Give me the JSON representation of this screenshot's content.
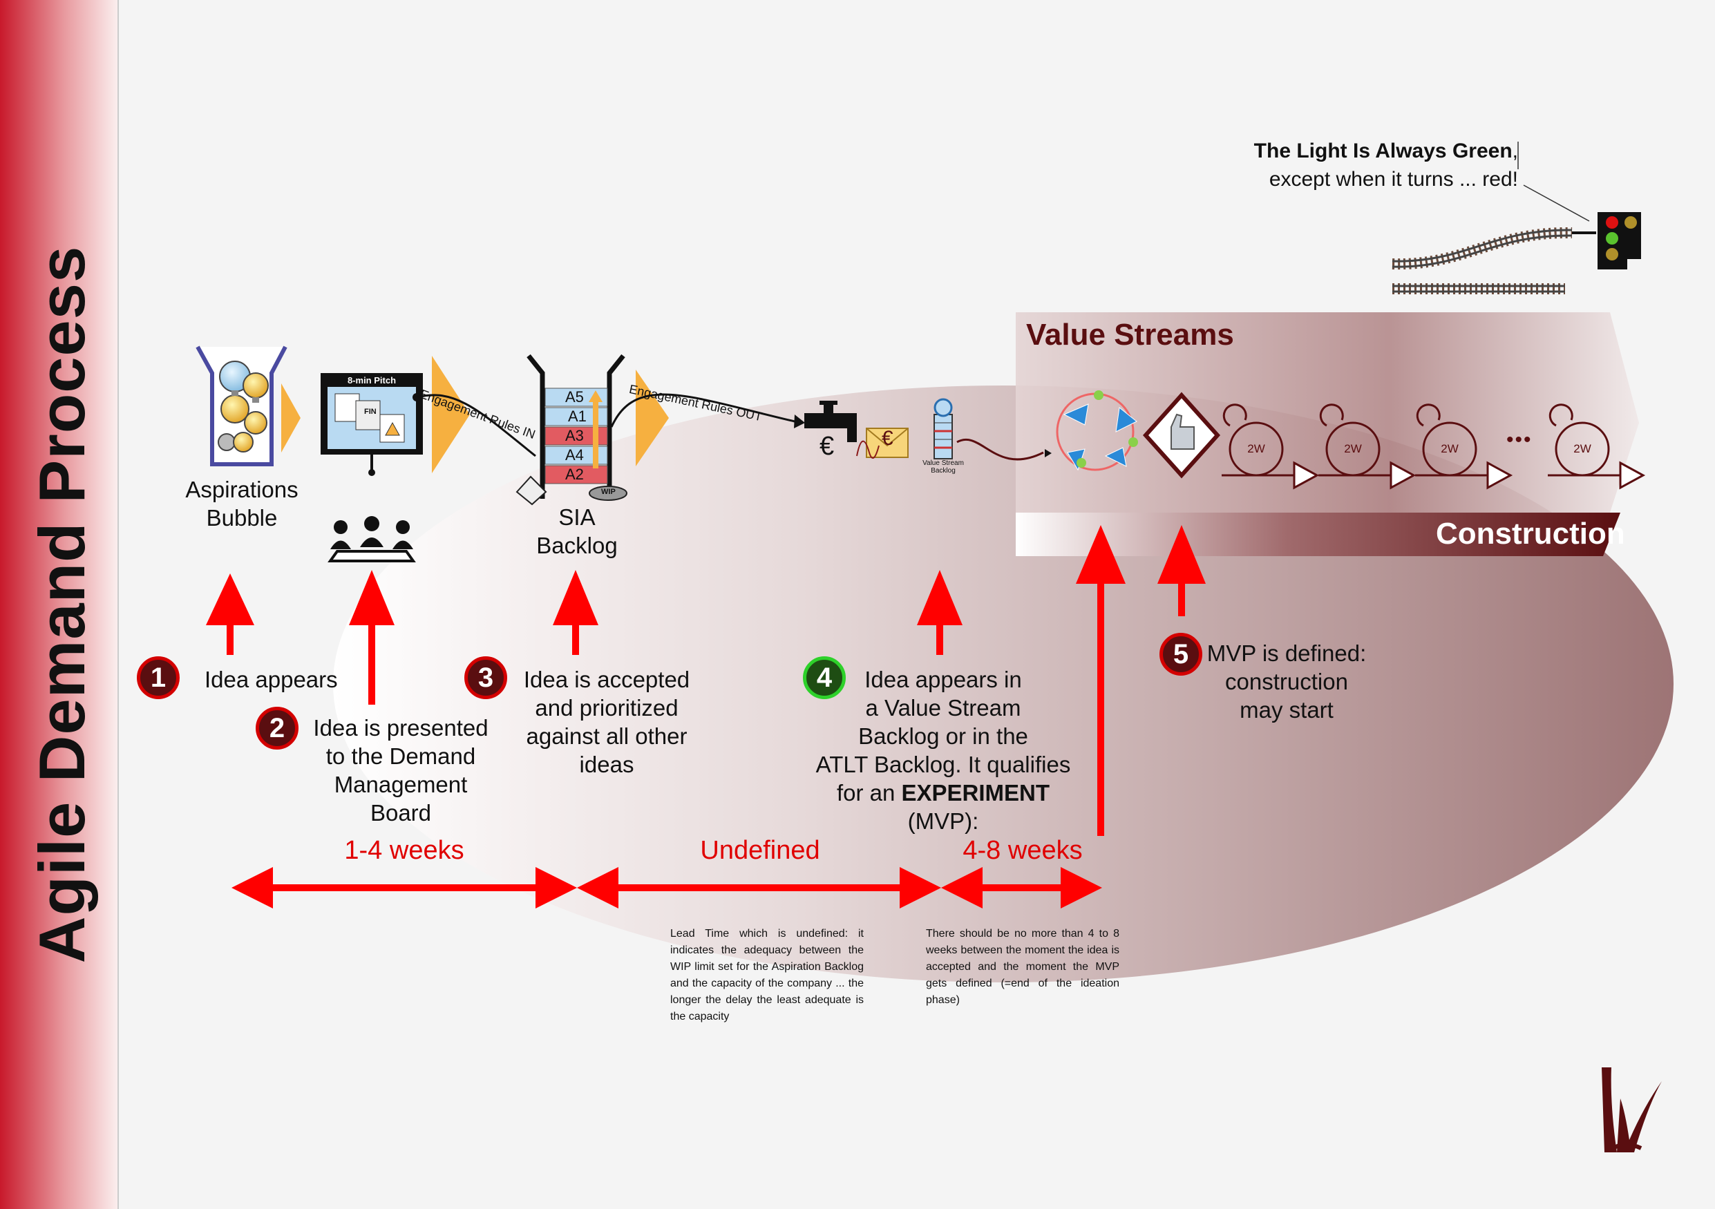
{
  "page_title": "Agile Demand Process",
  "stages": {
    "aspirations": "Aspirations\nBubble",
    "pitch_title": "8-min Pitch",
    "pitch_fin": "FIN",
    "sia_backlog": "SIA\nBacklog",
    "backlog_items": [
      "A5",
      "A1",
      "A3",
      "A4",
      "A2"
    ],
    "wip": "WIP",
    "vs_backlog": "Value Stream\nBacklog",
    "euro": "€",
    "rules_in": "Engagement Rules IN",
    "rules_out": "Engagement Rules OUT"
  },
  "value_streams": {
    "title": "Value Streams",
    "construction": "Construction",
    "sprint_label": "2W",
    "ellipsis": "•••"
  },
  "signal": {
    "line1_bold": "The Light Is Always Green",
    "line1_rest": ",",
    "line2": "except when it turns ... red!"
  },
  "steps": [
    {
      "num": "1",
      "text": "Idea appears"
    },
    {
      "num": "2",
      "text": "Idea is presented\nto the Demand\nManagement Board"
    },
    {
      "num": "3",
      "text": "Idea is accepted\nand prioritized\nagainst all other\nideas"
    },
    {
      "num": "4",
      "text_before": "Idea appears in\na Value Stream\nBacklog or in the\nATLT Backlog. It qualifies\nfor an ",
      "text_bold": "EXPERIMENT",
      "text_after": " (MVP):"
    },
    {
      "num": "5",
      "text": "MVP is defined:\nconstruction\nmay start"
    }
  ],
  "durations": [
    "1-4 weeks",
    "Undefined",
    "4-8 weeks"
  ],
  "notes": {
    "undefined": "Lead Time which is undefined: it indicates the adequacy between the WIP limit set for the Aspiration Backlog and the capacity of the company ... the longer the delay the least adequate is the capacity",
    "weeks": "There should be no more than 4 to 8 weeks between the moment the idea is accepted and the moment the MVP gets defined (=end of the ideation phase)"
  },
  "colors": {
    "accent_red": "#ff0000",
    "dark_red": "#5a0e10",
    "ellipse": "#a87f80",
    "vs_title": "#5a0e10"
  }
}
